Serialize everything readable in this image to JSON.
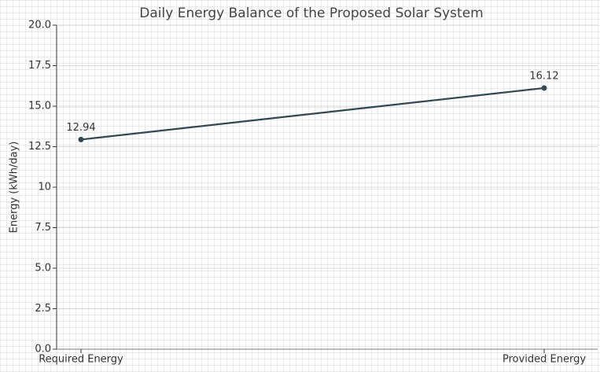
{
  "chart_data": {
    "type": "line",
    "title": "Daily Energy Balance of the Proposed Solar System",
    "ylabel": "Energy (kWh/day)",
    "categories": [
      "Required Energy",
      "Provided Energy"
    ],
    "values": [
      12.94,
      16.12
    ],
    "color": "#2f4858",
    "ylim": [
      0,
      20
    ],
    "yticks": [
      {
        "value": 0,
        "label": "0.0"
      },
      2.5,
      {
        "value": 5,
        "label": "5.0"
      },
      7.5,
      10.0,
      12.5,
      {
        "value": 15,
        "label": "15.0"
      },
      17.5,
      {
        "value": 20,
        "label": "20.0"
      }
    ],
    "grid": true
  }
}
